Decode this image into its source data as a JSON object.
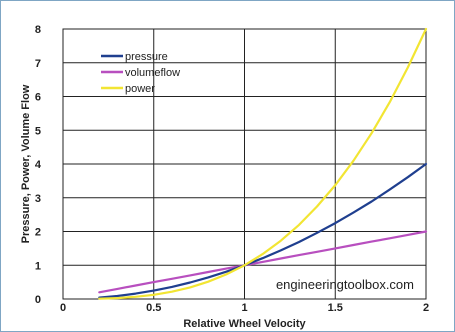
{
  "chart_data": {
    "type": "line",
    "title": "",
    "xlabel": "Relative Wheel Velocity",
    "ylabel": "Pressure, Power, Volume Flow",
    "xlim": [
      0,
      2
    ],
    "ylim": [
      0,
      8
    ],
    "x_ticks": [
      "0",
      "0.5",
      "1",
      "1.5",
      "2"
    ],
    "y_ticks": [
      "0",
      "1",
      "2",
      "3",
      "4",
      "5",
      "6",
      "7",
      "8"
    ],
    "grid": true,
    "legend_position": "top-left",
    "annotation": "engineeringtoolbox.com",
    "x": [
      0.2,
      0.3,
      0.4,
      0.5,
      0.6,
      0.7,
      0.8,
      0.9,
      1.0,
      1.1,
      1.2,
      1.3,
      1.4,
      1.5,
      1.6,
      1.7,
      1.8,
      1.9,
      2.0
    ],
    "series": [
      {
        "name": "pressure",
        "color": "#1f3f8f",
        "values": [
          0.04,
          0.09,
          0.16,
          0.25,
          0.36,
          0.49,
          0.64,
          0.81,
          1.0,
          1.21,
          1.44,
          1.69,
          1.96,
          2.25,
          2.56,
          2.89,
          3.24,
          3.61,
          4.0
        ]
      },
      {
        "name": "volumeflow",
        "color": "#b84fbf",
        "values": [
          0.2,
          0.3,
          0.4,
          0.5,
          0.6,
          0.7,
          0.8,
          0.9,
          1.0,
          1.1,
          1.2,
          1.3,
          1.4,
          1.5,
          1.6,
          1.7,
          1.8,
          1.9,
          2.0
        ]
      },
      {
        "name": "power",
        "color": "#f2e533",
        "values": [
          0.008,
          0.027,
          0.064,
          0.125,
          0.216,
          0.343,
          0.512,
          0.729,
          1.0,
          1.331,
          1.728,
          2.197,
          2.744,
          3.375,
          4.096,
          4.913,
          5.832,
          6.859,
          8.0
        ]
      }
    ]
  }
}
